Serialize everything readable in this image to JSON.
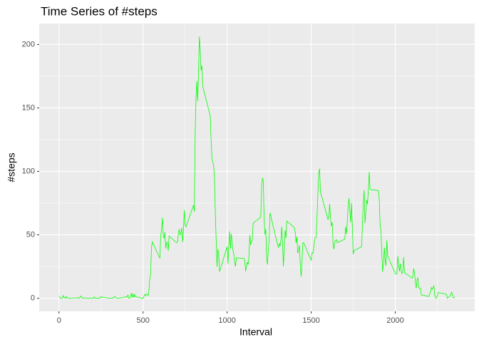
{
  "chart_data": {
    "type": "line",
    "title": "Time Series of #steps",
    "x_label": "Interval",
    "y_label": "#steps",
    "x": [
      0,
      5,
      10,
      15,
      20,
      25,
      30,
      35,
      40,
      45,
      50,
      55,
      100,
      105,
      110,
      115,
      120,
      125,
      130,
      135,
      140,
      145,
      150,
      155,
      200,
      205,
      210,
      215,
      220,
      225,
      230,
      235,
      240,
      245,
      250,
      255,
      300,
      305,
      310,
      315,
      320,
      325,
      330,
      335,
      340,
      345,
      350,
      355,
      400,
      405,
      410,
      415,
      420,
      425,
      430,
      435,
      440,
      445,
      450,
      455,
      500,
      505,
      510,
      515,
      520,
      525,
      530,
      535,
      540,
      545,
      550,
      555,
      600,
      605,
      610,
      615,
      620,
      625,
      630,
      635,
      640,
      645,
      650,
      655,
      700,
      705,
      710,
      715,
      720,
      725,
      730,
      735,
      740,
      745,
      750,
      755,
      800,
      805,
      810,
      815,
      820,
      825,
      830,
      835,
      840,
      845,
      850,
      855,
      900,
      905,
      910,
      915,
      920,
      925,
      930,
      935,
      940,
      945,
      950,
      955,
      1000,
      1005,
      1010,
      1015,
      1020,
      1025,
      1030,
      1035,
      1040,
      1045,
      1050,
      1055,
      1100,
      1105,
      1110,
      1115,
      1120,
      1125,
      1130,
      1135,
      1140,
      1145,
      1150,
      1155,
      1200,
      1205,
      1210,
      1215,
      1220,
      1225,
      1230,
      1235,
      1240,
      1245,
      1250,
      1255,
      1300,
      1305,
      1310,
      1315,
      1320,
      1325,
      1330,
      1335,
      1340,
      1345,
      1350,
      1355,
      1400,
      1405,
      1410,
      1415,
      1420,
      1425,
      1430,
      1435,
      1440,
      1445,
      1450,
      1455,
      1500,
      1505,
      1510,
      1515,
      1520,
      1525,
      1530,
      1535,
      1540,
      1545,
      1550,
      1555,
      1600,
      1605,
      1610,
      1615,
      1620,
      1625,
      1630,
      1635,
      1640,
      1645,
      1650,
      1655,
      1700,
      1705,
      1710,
      1715,
      1720,
      1725,
      1730,
      1735,
      1740,
      1745,
      1750,
      1755,
      1800,
      1805,
      1810,
      1815,
      1820,
      1825,
      1830,
      1835,
      1840,
      1845,
      1850,
      1855,
      1900,
      1905,
      1910,
      1915,
      1920,
      1925,
      1930,
      1935,
      1940,
      1945,
      1950,
      1955,
      2000,
      2005,
      2010,
      2015,
      2020,
      2025,
      2030,
      2035,
      2040,
      2045,
      2050,
      2055,
      2100,
      2105,
      2110,
      2115,
      2120,
      2125,
      2130,
      2135,
      2140,
      2145,
      2150,
      2155,
      2200,
      2205,
      2210,
      2215,
      2220,
      2225,
      2230,
      2235,
      2240,
      2245,
      2250,
      2255,
      2300,
      2305,
      2310,
      2315,
      2320,
      2325,
      2330,
      2335,
      2340,
      2345,
      2350,
      2355
    ],
    "series": [
      {
        "name": "#steps",
        "color": "#00ff00",
        "values": [
          1.7,
          0.3,
          0.1,
          0.2,
          0.1,
          2.1,
          0.5,
          0.9,
          0,
          1.5,
          0.3,
          0.1,
          0.3,
          0.7,
          0.2,
          0.3,
          0,
          1.1,
          1.8,
          0.2,
          0.2,
          0.4,
          0.3,
          0,
          0,
          0,
          1.1,
          0,
          0,
          0.1,
          0,
          0.2,
          0,
          0,
          1.5,
          0.9,
          0,
          0,
          0,
          0,
          0.2,
          0.6,
          1.6,
          0.6,
          0.5,
          0.1,
          0,
          0,
          1.2,
          0.9,
          2.6,
          0,
          0.3,
          0.4,
          4.1,
          0.7,
          3.5,
          0.8,
          3.1,
          1.1,
          0,
          1.5,
          3,
          2.2,
          3.3,
          3,
          2.1,
          6.1,
          16,
          18.3,
          39.5,
          44.5,
          31.5,
          49.3,
          53.8,
          63.5,
          50,
          47.1,
          52.2,
          39.3,
          44,
          44.2,
          37.4,
          49,
          43.8,
          44.4,
          50.5,
          54.5,
          49.9,
          50.9,
          55.7,
          44.3,
          52.3,
          69.5,
          57.8,
          56.2,
          73.4,
          68.2,
          129.4,
          157.5,
          171.2,
          155.4,
          177.3,
          206.2,
          195.9,
          179.6,
          183.4,
          167,
          143.5,
          124,
          109.1,
          108.1,
          103.7,
          95.9,
          66.2,
          45.2,
          24.8,
          38.8,
          35,
          21,
          40.6,
          27,
          42.4,
          52.7,
          38.9,
          50.8,
          44.3,
          37.4,
          34.7,
          28.3,
          25.1,
          31.9,
          31.4,
          29.7,
          21.3,
          25.5,
          28.4,
          26.5,
          33.4,
          50,
          42,
          44.6,
          46,
          59.2,
          63.9,
          87.6,
          94.8,
          92.8,
          63.4,
          50.2,
          54.5,
          32.4,
          26.5,
          37.7,
          45.1,
          67.3,
          42.3,
          39.9,
          43.3,
          41,
          46.2,
          56.4,
          42.8,
          25.1,
          40,
          53.5,
          47.3,
          60.8,
          55.8,
          52,
          43.6,
          48.7,
          35.5,
          37.5,
          41.8,
          27.5,
          17.1,
          26.1,
          43.6,
          43.8,
          30,
          36.1,
          35.5,
          38.8,
          46,
          47.8,
          48.1,
          65.3,
          82.9,
          98.7,
          102.1,
          84,
          62.1,
          64.1,
          74.5,
          63.2,
          56.9,
          59.8,
          43.9,
          38.6,
          44.7,
          45.5,
          46.2,
          43.7,
          46.6,
          56.3,
          50.7,
          61.2,
          72.7,
          78.9,
          68.9,
          59.7,
          75.1,
          56.5,
          34.8,
          37.5,
          40.7,
          58,
          74.7,
          85.3,
          59.3,
          67.8,
          77.7,
          74.2,
          85.3,
          99.5,
          86.6,
          85.6,
          84.9,
          77.8,
          58,
          53.4,
          36.3,
          20.7,
          27.4,
          40,
          30.2,
          25.5,
          45.7,
          33.5,
          19.6,
          19,
          19.3,
          33.3,
          26.8,
          21.2,
          27.3,
          21.3,
          19.5,
          21.3,
          32.3,
          20.2,
          15.9,
          17.2,
          23.5,
          19.2,
          12.5,
          8,
          14.7,
          16.3,
          8.7,
          7.8,
          8.1,
          2.6,
          1.5,
          3.7,
          4.8,
          8.5,
          7.1,
          8.7,
          9.8,
          2.2,
          0.3,
          0.1,
          1.6,
          4.6,
          3.3,
          2.8,
          0,
          0.8,
          1,
          1.6,
          2.6,
          4.7,
          3.3,
          0.6,
          0.2,
          1.1
        ]
      }
    ],
    "xlim": [
      -117.75,
      2472.75
    ],
    "ylim": [
      -10.3,
      216.5
    ],
    "xticks": [
      0,
      500,
      1000,
      1500,
      2000
    ],
    "yticks": [
      0,
      50,
      100,
      150,
      200
    ],
    "x_minor_grid": [
      250,
      750,
      1250,
      1750,
      2250
    ],
    "y_minor_grid": [
      25,
      75,
      125,
      175
    ],
    "grid": true,
    "panel_color": "#ebebeb"
  }
}
